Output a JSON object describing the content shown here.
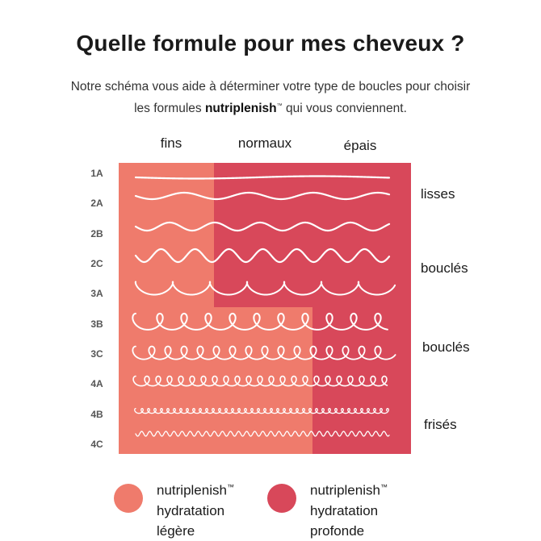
{
  "title": "Quelle formule pour mes cheveux ?",
  "subtitle": {
    "line1": "Notre schéma vous aide à déterminer votre type de boucles pour choisir",
    "line2_before": "les formules ",
    "line2_brand": "nutriplenish",
    "line2_tm": "™",
    "line2_after": " qui vous conviennent."
  },
  "columns": [
    "fins",
    "normaux",
    "épais"
  ],
  "rows": [
    "1A",
    "2A",
    "2B",
    "2C",
    "3A",
    "3B",
    "3C",
    "4A",
    "4B",
    "4C"
  ],
  "categories": [
    "lisses",
    "bouclés",
    "bouclés",
    "frisés"
  ],
  "colors": {
    "light": "#ef7b6c",
    "deep": "#d8485a",
    "line": "#ffffff"
  },
  "legend": [
    {
      "brand": "nutriplenish",
      "tm": "™",
      "line2": "hydratation",
      "line3": "légère",
      "color": "#ef7b6c"
    },
    {
      "brand": "nutriplenish",
      "tm": "™",
      "line2": "hydratation",
      "line3": "profonde",
      "color": "#d8485a"
    }
  ]
}
